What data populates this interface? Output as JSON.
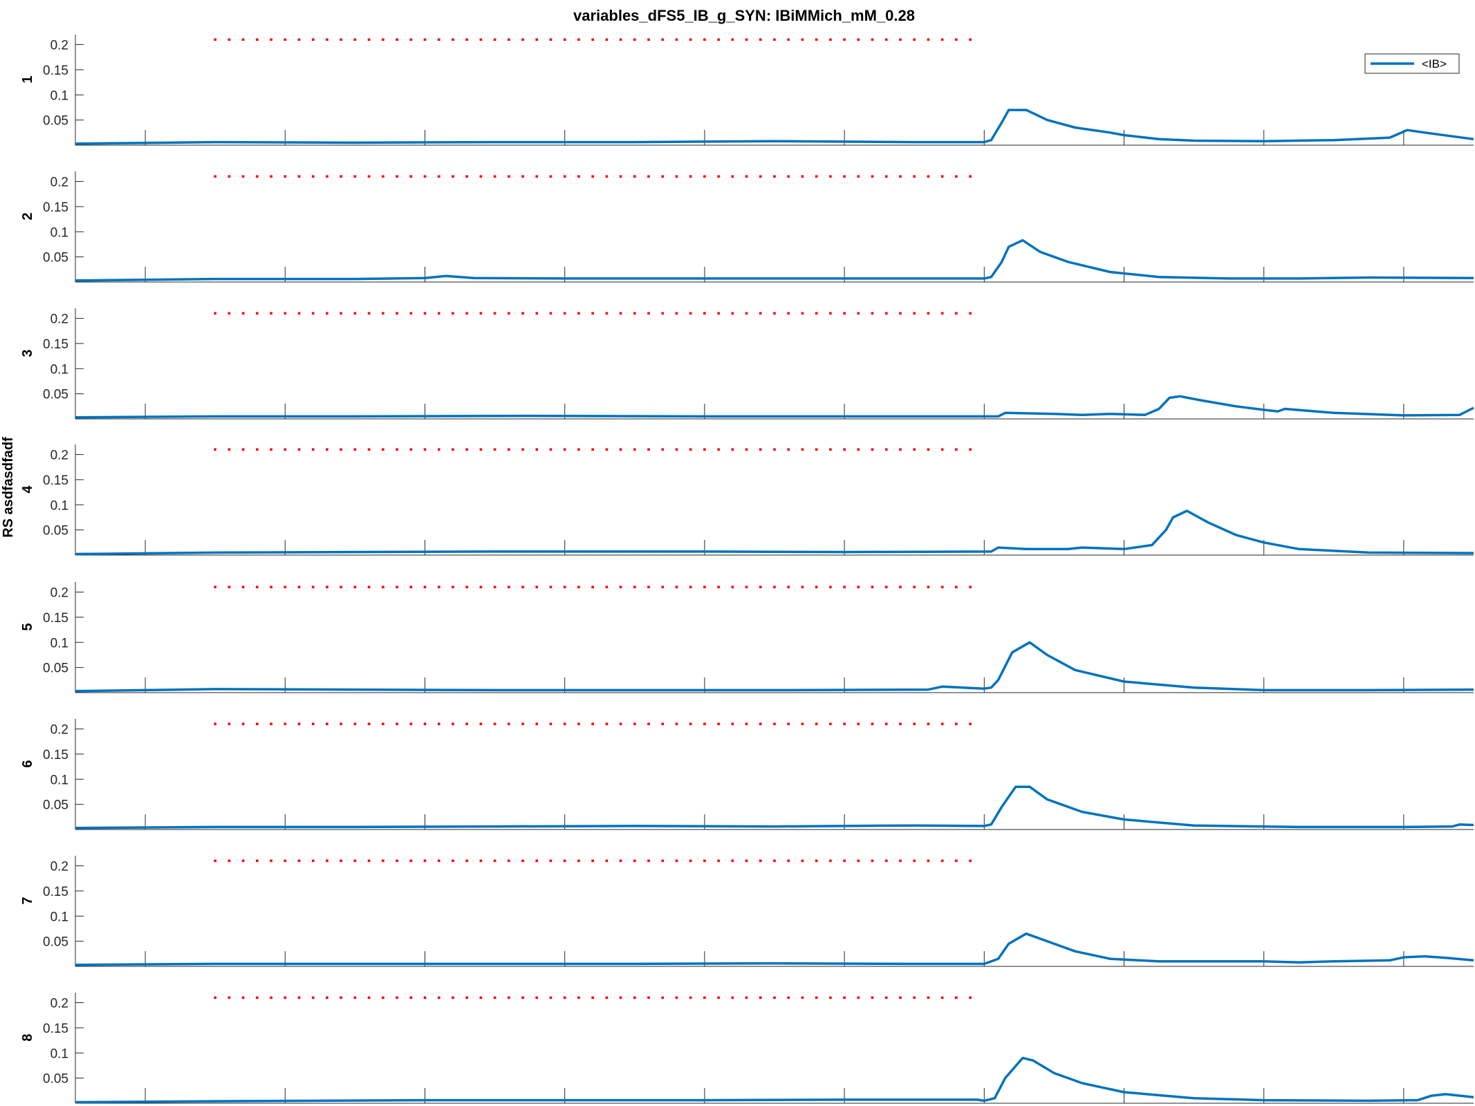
{
  "chart_data": {
    "type": "line",
    "title": "variables_dFS5_IB_g_SYN: IBiMMich_mM_0.28",
    "ylabel": "RS asdfasdfadf",
    "xlabel": "",
    "xlim": [
      300,
      2300
    ],
    "ylim": [
      0,
      0.22
    ],
    "xticks": [
      400,
      600,
      800,
      1000,
      1200,
      1400,
      1600,
      1800,
      2000,
      2200
    ],
    "yticks": [
      0.05,
      0.1,
      0.15,
      0.2
    ],
    "ytick_labels": [
      "0.05",
      "0.1",
      "0.15",
      "0.2"
    ],
    "legend": {
      "entries": [
        "<IB>"
      ],
      "location": "top-right"
    },
    "series_color": "#0072BD",
    "marker_color": "#FF0000",
    "marker_line": {
      "x_start": 500,
      "x_end": 1580,
      "x_step": 20,
      "y": 0.21
    },
    "panels": [
      {
        "label": "1",
        "points": [
          [
            300,
            0.003
          ],
          [
            500,
            0.006
          ],
          [
            700,
            0.005
          ],
          [
            900,
            0.006
          ],
          [
            1100,
            0.006
          ],
          [
            1300,
            0.008
          ],
          [
            1500,
            0.006
          ],
          [
            1600,
            0.006
          ],
          [
            1610,
            0.01
          ],
          [
            1625,
            0.045
          ],
          [
            1635,
            0.07
          ],
          [
            1660,
            0.07
          ],
          [
            1690,
            0.05
          ],
          [
            1730,
            0.035
          ],
          [
            1780,
            0.025
          ],
          [
            1800,
            0.02
          ],
          [
            1850,
            0.012
          ],
          [
            1900,
            0.009
          ],
          [
            2000,
            0.008
          ],
          [
            2100,
            0.01
          ],
          [
            2180,
            0.015
          ],
          [
            2205,
            0.03
          ],
          [
            2230,
            0.025
          ],
          [
            2300,
            0.012
          ]
        ]
      },
      {
        "label": "2",
        "points": [
          [
            300,
            0.003
          ],
          [
            500,
            0.006
          ],
          [
            700,
            0.006
          ],
          [
            800,
            0.008
          ],
          [
            830,
            0.012
          ],
          [
            870,
            0.008
          ],
          [
            1000,
            0.007
          ],
          [
            1200,
            0.007
          ],
          [
            1400,
            0.007
          ],
          [
            1600,
            0.007
          ],
          [
            1610,
            0.01
          ],
          [
            1625,
            0.04
          ],
          [
            1635,
            0.07
          ],
          [
            1655,
            0.083
          ],
          [
            1680,
            0.06
          ],
          [
            1720,
            0.04
          ],
          [
            1780,
            0.02
          ],
          [
            1850,
            0.01
          ],
          [
            1950,
            0.007
          ],
          [
            2050,
            0.007
          ],
          [
            2150,
            0.009
          ],
          [
            2300,
            0.008
          ]
        ]
      },
      {
        "label": "3",
        "points": [
          [
            300,
            0.003
          ],
          [
            500,
            0.005
          ],
          [
            700,
            0.005
          ],
          [
            950,
            0.006
          ],
          [
            1200,
            0.005
          ],
          [
            1400,
            0.005
          ],
          [
            1620,
            0.005
          ],
          [
            1630,
            0.012
          ],
          [
            1700,
            0.01
          ],
          [
            1740,
            0.008
          ],
          [
            1780,
            0.01
          ],
          [
            1830,
            0.008
          ],
          [
            1850,
            0.02
          ],
          [
            1865,
            0.042
          ],
          [
            1880,
            0.045
          ],
          [
            1910,
            0.037
          ],
          [
            1960,
            0.025
          ],
          [
            2000,
            0.018
          ],
          [
            2020,
            0.015
          ],
          [
            2030,
            0.02
          ],
          [
            2100,
            0.012
          ],
          [
            2200,
            0.007
          ],
          [
            2280,
            0.008
          ],
          [
            2300,
            0.022
          ]
        ]
      },
      {
        "label": "4",
        "points": [
          [
            300,
            0.002
          ],
          [
            500,
            0.005
          ],
          [
            700,
            0.006
          ],
          [
            900,
            0.007
          ],
          [
            1200,
            0.007
          ],
          [
            1400,
            0.006
          ],
          [
            1610,
            0.007
          ],
          [
            1620,
            0.015
          ],
          [
            1660,
            0.012
          ],
          [
            1720,
            0.012
          ],
          [
            1740,
            0.015
          ],
          [
            1800,
            0.012
          ],
          [
            1840,
            0.02
          ],
          [
            1860,
            0.05
          ],
          [
            1870,
            0.075
          ],
          [
            1890,
            0.088
          ],
          [
            1920,
            0.065
          ],
          [
            1960,
            0.04
          ],
          [
            2000,
            0.025
          ],
          [
            2050,
            0.012
          ],
          [
            2150,
            0.005
          ],
          [
            2300,
            0.004
          ]
        ]
      },
      {
        "label": "5",
        "points": [
          [
            300,
            0.003
          ],
          [
            500,
            0.007
          ],
          [
            700,
            0.006
          ],
          [
            900,
            0.005
          ],
          [
            1100,
            0.005
          ],
          [
            1300,
            0.005
          ],
          [
            1520,
            0.006
          ],
          [
            1540,
            0.012
          ],
          [
            1600,
            0.008
          ],
          [
            1610,
            0.01
          ],
          [
            1620,
            0.025
          ],
          [
            1640,
            0.08
          ],
          [
            1665,
            0.1
          ],
          [
            1690,
            0.075
          ],
          [
            1730,
            0.045
          ],
          [
            1800,
            0.022
          ],
          [
            1900,
            0.01
          ],
          [
            2000,
            0.005
          ],
          [
            2150,
            0.005
          ],
          [
            2300,
            0.006
          ]
        ]
      },
      {
        "label": "6",
        "points": [
          [
            300,
            0.003
          ],
          [
            500,
            0.005
          ],
          [
            700,
            0.005
          ],
          [
            900,
            0.006
          ],
          [
            1100,
            0.007
          ],
          [
            1300,
            0.006
          ],
          [
            1500,
            0.008
          ],
          [
            1600,
            0.007
          ],
          [
            1610,
            0.01
          ],
          [
            1625,
            0.045
          ],
          [
            1645,
            0.085
          ],
          [
            1665,
            0.085
          ],
          [
            1690,
            0.06
          ],
          [
            1740,
            0.035
          ],
          [
            1800,
            0.02
          ],
          [
            1900,
            0.008
          ],
          [
            2050,
            0.005
          ],
          [
            2200,
            0.005
          ],
          [
            2270,
            0.006
          ],
          [
            2280,
            0.01
          ],
          [
            2300,
            0.009
          ]
        ]
      },
      {
        "label": "7",
        "points": [
          [
            300,
            0.003
          ],
          [
            500,
            0.005
          ],
          [
            700,
            0.005
          ],
          [
            900,
            0.005
          ],
          [
            1100,
            0.005
          ],
          [
            1300,
            0.006
          ],
          [
            1500,
            0.005
          ],
          [
            1600,
            0.005
          ],
          [
            1620,
            0.015
          ],
          [
            1635,
            0.045
          ],
          [
            1660,
            0.065
          ],
          [
            1690,
            0.05
          ],
          [
            1730,
            0.03
          ],
          [
            1780,
            0.015
          ],
          [
            1850,
            0.01
          ],
          [
            2000,
            0.01
          ],
          [
            2050,
            0.008
          ],
          [
            2100,
            0.01
          ],
          [
            2180,
            0.012
          ],
          [
            2200,
            0.018
          ],
          [
            2230,
            0.02
          ],
          [
            2260,
            0.017
          ],
          [
            2300,
            0.012
          ]
        ]
      },
      {
        "label": "8",
        "points": [
          [
            300,
            0.002
          ],
          [
            500,
            0.004
          ],
          [
            800,
            0.006
          ],
          [
            1000,
            0.006
          ],
          [
            1200,
            0.006
          ],
          [
            1400,
            0.007
          ],
          [
            1590,
            0.007
          ],
          [
            1600,
            0.005
          ],
          [
            1615,
            0.01
          ],
          [
            1630,
            0.05
          ],
          [
            1655,
            0.09
          ],
          [
            1670,
            0.085
          ],
          [
            1700,
            0.06
          ],
          [
            1740,
            0.04
          ],
          [
            1800,
            0.022
          ],
          [
            1900,
            0.01
          ],
          [
            2000,
            0.006
          ],
          [
            2150,
            0.005
          ],
          [
            2220,
            0.006
          ],
          [
            2240,
            0.015
          ],
          [
            2260,
            0.018
          ],
          [
            2300,
            0.012
          ]
        ]
      }
    ]
  }
}
